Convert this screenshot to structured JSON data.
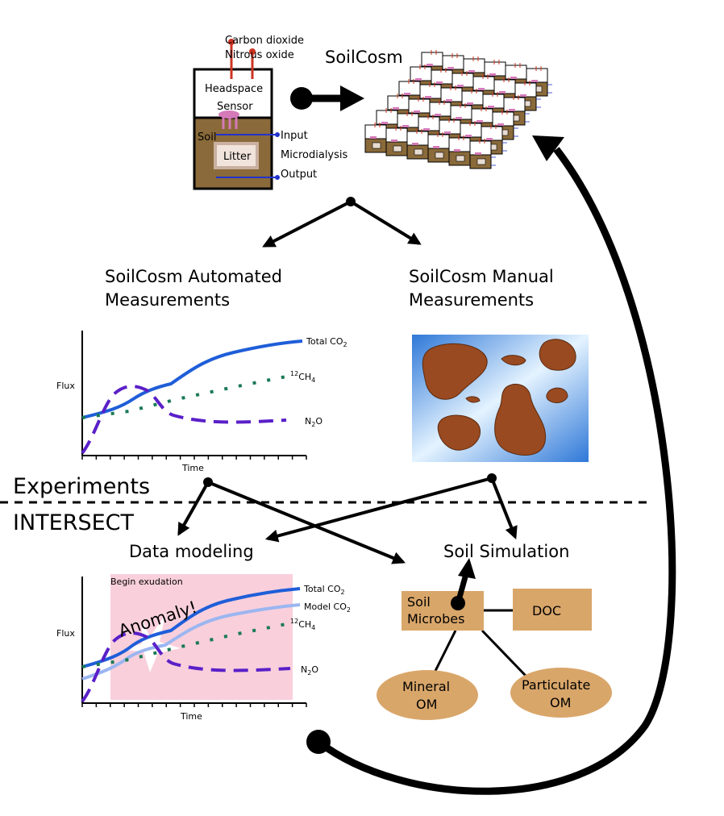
{
  "apparatus": {
    "gas_line1": "Carbon dioxide",
    "gas_line2": "Nitrous oxide",
    "headspace": "Headspace",
    "sensor": "Sensor",
    "soil": "Soil",
    "litter": "Litter",
    "input": "Input",
    "microdialysis": "Microdialysis",
    "output": "Output"
  },
  "soilcosm_title": "SoilCosm",
  "automated": {
    "line1": "SoilCosm Automated",
    "line2": "Measurements"
  },
  "manual": {
    "line1": "SoilCosm Manual",
    "line2": "Measurements"
  },
  "chart1": {
    "ylabel": "Flux",
    "xlabel": "Time",
    "series": {
      "total": "Total CO",
      "total_sub": "2",
      "ch4_sup": "12",
      "ch4": "CH",
      "ch4_sub": "4",
      "n2o": "N",
      "n2o_sub": "2",
      "n2o_end": "O"
    }
  },
  "sections": {
    "experiments": "Experiments",
    "intersect": "INTERSECT"
  },
  "data_modeling": "Data modeling",
  "soil_simulation": "Soil Simulation",
  "chart2": {
    "ylabel": "Flux",
    "xlabel": "Time",
    "exudation": "Begin exudation",
    "anomaly": "Anomaly!",
    "series": {
      "total": "Total CO",
      "total_sub": "2",
      "model": "Model CO",
      "model_sub": "2",
      "ch4_sup": "12",
      "ch4": "CH",
      "ch4_sub": "4",
      "n2o": "N",
      "n2o_sub": "2",
      "n2o_end": "O"
    }
  },
  "model_nodes": {
    "microbes1": "Soil",
    "microbes2": "Microbes",
    "doc": "DOC",
    "mineral1": "Mineral",
    "mineral2": "OM",
    "particulate1": "Particulate",
    "particulate2": "OM"
  },
  "colors": {
    "soil": "#8a6a3a",
    "total_co2": "#1f5ed8",
    "model_co2": "#9bb6f0",
    "ch4": "#1a7a55",
    "n2o": "#5a20c8",
    "exudation_bg": "#f9cfdc",
    "node_fill": "#d9a66a",
    "sensor": "#d47ab8",
    "gas_tube": "#cc3322"
  }
}
